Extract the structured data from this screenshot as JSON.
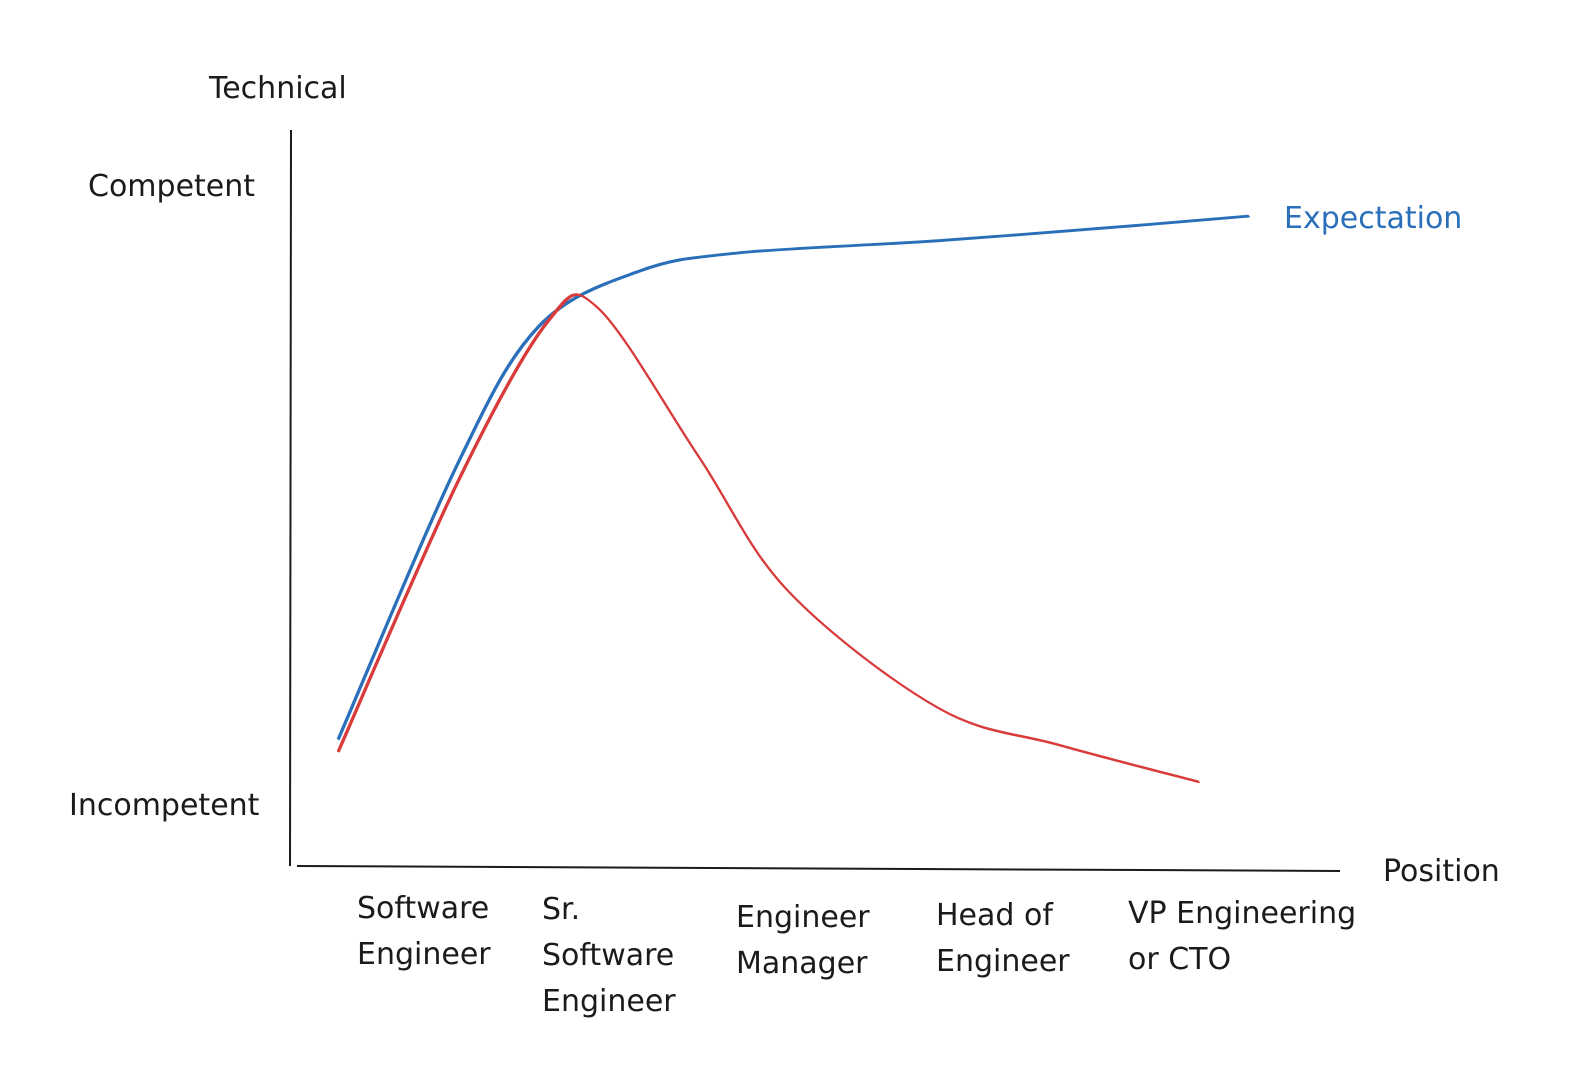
{
  "chart_data": {
    "type": "line",
    "title": "",
    "ylabel": "Technical",
    "xlabel": "Position",
    "ylim": [
      0,
      100
    ],
    "y_ticks": [
      {
        "value": 100,
        "label": "Competent"
      },
      {
        "value": 0,
        "label": "Incompetent"
      }
    ],
    "categories": [
      [
        "Software",
        "Engineer"
      ],
      [
        "Sr.",
        "Software",
        "Engineer"
      ],
      [
        "Engineer",
        "Manager"
      ],
      [
        "Head of",
        "Engineer"
      ],
      [
        "VP Engineering",
        "or CTO"
      ]
    ],
    "series": [
      {
        "name": "Expectation",
        "color": "#2a6fba",
        "labeled": true,
        "points": [
          [
            0.0,
            10
          ],
          [
            0.6,
            55
          ],
          [
            1.0,
            77
          ],
          [
            1.5,
            86
          ],
          [
            2.0,
            89
          ],
          [
            3.0,
            91
          ],
          [
            4.0,
            93.5
          ],
          [
            4.55,
            95
          ]
        ]
      },
      {
        "name": "",
        "color": "#d93a3a",
        "labeled": false,
        "points": [
          [
            0.0,
            8
          ],
          [
            0.6,
            52
          ],
          [
            1.05,
            78
          ],
          [
            1.3,
            80
          ],
          [
            1.8,
            56
          ],
          [
            2.25,
            34
          ],
          [
            3.0,
            15
          ],
          [
            3.6,
            9
          ],
          [
            4.3,
            3
          ]
        ]
      }
    ]
  }
}
